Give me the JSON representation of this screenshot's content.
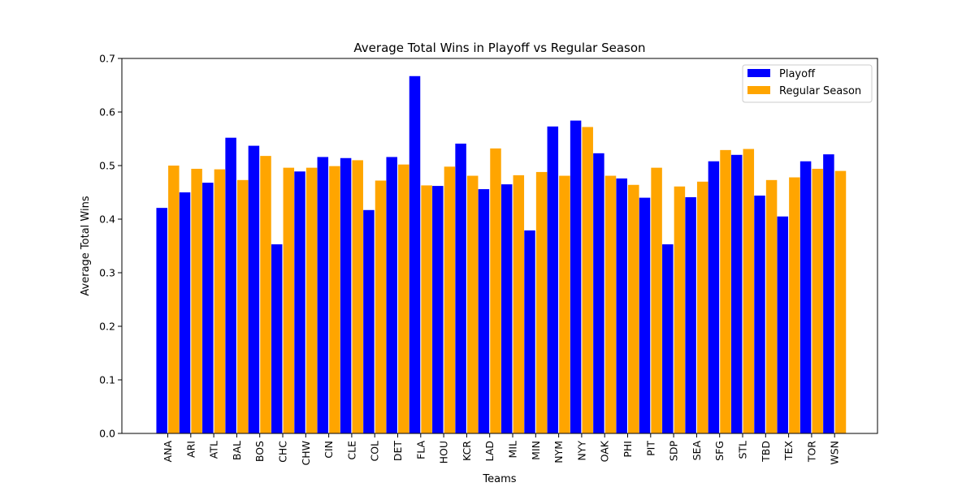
{
  "chart_data": {
    "type": "bar",
    "title": "Average Total Wins in Playoff vs Regular Season",
    "xlabel": "Teams",
    "ylabel": "Average Total Wins",
    "ylim": [
      0,
      0.7
    ],
    "yticks": [
      "0.0",
      "0.1",
      "0.2",
      "0.3",
      "0.4",
      "0.5",
      "0.6",
      "0.7"
    ],
    "grid": false,
    "legend_position": "top-right",
    "categories": [
      "ANA",
      "ARI",
      "ATL",
      "BAL",
      "BOS",
      "CHC",
      "CHW",
      "CIN",
      "CLE",
      "COL",
      "DET",
      "FLA",
      "HOU",
      "KCR",
      "LAD",
      "MIL",
      "MIN",
      "NYM",
      "NYY",
      "OAK",
      "PHI",
      "PIT",
      "SDP",
      "SEA",
      "SFG",
      "STL",
      "TBD",
      "TEX",
      "TOR",
      "WSN"
    ],
    "series": [
      {
        "name": "Playoff",
        "color": "#0000ff",
        "values": [
          0.421,
          0.45,
          0.468,
          0.552,
          0.537,
          0.353,
          0.489,
          0.516,
          0.514,
          0.417,
          0.516,
          0.667,
          0.462,
          0.541,
          0.456,
          0.465,
          0.379,
          0.573,
          0.584,
          0.523,
          0.476,
          0.44,
          0.353,
          0.441,
          0.508,
          0.52,
          0.444,
          0.405,
          0.508,
          0.521
        ]
      },
      {
        "name": "Regular Season",
        "color": "#ffa500",
        "values": [
          0.5,
          0.494,
          0.493,
          0.473,
          0.518,
          0.496,
          0.496,
          0.499,
          0.51,
          0.472,
          0.502,
          0.463,
          0.498,
          0.481,
          0.532,
          0.482,
          0.488,
          0.481,
          0.572,
          0.481,
          0.464,
          0.496,
          0.461,
          0.47,
          0.529,
          0.531,
          0.473,
          0.478,
          0.494,
          0.49
        ]
      }
    ]
  }
}
